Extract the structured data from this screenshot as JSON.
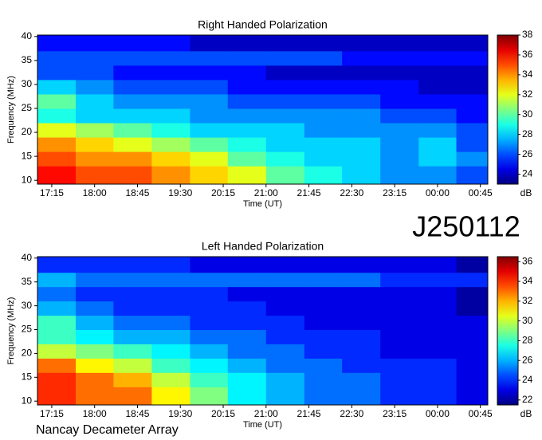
{
  "label": "J250112",
  "footer": "Nancay Decameter Array",
  "chart_data": [
    {
      "type": "heatmap",
      "title": "Right Handed Polarization",
      "xlabel": "Time (UT)",
      "ylabel": "Frequency (MHz)",
      "colorbar_label": "dB",
      "colormap": "jet",
      "xlim": [
        17,
        24.88
      ],
      "ylim": [
        9.2,
        40.3
      ],
      "zlim": [
        23,
        38
      ],
      "xticks": [
        {
          "value": 17.25,
          "label": "17:15"
        },
        {
          "value": 18,
          "label": "18:00"
        },
        {
          "value": 18.75,
          "label": "18:45"
        },
        {
          "value": 19.5,
          "label": "19:30"
        },
        {
          "value": 20.25,
          "label": "20:15"
        },
        {
          "value": 21,
          "label": "21:00"
        },
        {
          "value": 21.75,
          "label": "21:45"
        },
        {
          "value": 22.5,
          "label": "22:30"
        },
        {
          "value": 23.25,
          "label": "23:15"
        },
        {
          "value": 24,
          "label": "00:00"
        },
        {
          "value": 24.75,
          "label": "00:45"
        }
      ],
      "yticks": [
        10,
        15,
        20,
        25,
        30,
        35,
        40
      ],
      "zticks": [
        24,
        26,
        28,
        30,
        32,
        34,
        36,
        38
      ],
      "xbins": [
        17,
        17.67,
        18.33,
        19,
        19.67,
        20.33,
        21,
        21.67,
        22.33,
        23,
        23.67,
        24.33,
        25
      ],
      "ybins": [
        9,
        13,
        16,
        19,
        22,
        25,
        28,
        31,
        34,
        37,
        41
      ],
      "z": [
        [
          36,
          35,
          35,
          34,
          33,
          32,
          30,
          29,
          28,
          27,
          27,
          26
        ],
        [
          35,
          34,
          34,
          33,
          32,
          30,
          29,
          28,
          28,
          27,
          28,
          27
        ],
        [
          34,
          33,
          32,
          31,
          30,
          29,
          28,
          28,
          28,
          27,
          28,
          26
        ],
        [
          32,
          31,
          30,
          29,
          28,
          28,
          28,
          27,
          27,
          27,
          27,
          26
        ],
        [
          29,
          28,
          28,
          28,
          27,
          27,
          27,
          27,
          27,
          26,
          26,
          25
        ],
        [
          30,
          28,
          27,
          27,
          27,
          26,
          26,
          26,
          26,
          25,
          25,
          25
        ],
        [
          28,
          27,
          26,
          26,
          26,
          25,
          25,
          25,
          25,
          25,
          24,
          24
        ],
        [
          26,
          26,
          25,
          25,
          25,
          25,
          24,
          24,
          24,
          24,
          24,
          24
        ],
        [
          26,
          26,
          26,
          26,
          26,
          26,
          26,
          26,
          25,
          25,
          25,
          25
        ],
        [
          25,
          25,
          25,
          25,
          24,
          24,
          24,
          24,
          24,
          24,
          24,
          24
        ]
      ]
    },
    {
      "type": "heatmap",
      "title": "Left Handed Polarization",
      "xlabel": "Time (UT)",
      "ylabel": "Frequency (MHz)",
      "colorbar_label": "dB",
      "colormap": "jet",
      "xlim": [
        17,
        24.88
      ],
      "ylim": [
        9.2,
        40.3
      ],
      "zlim": [
        21.5,
        36.5
      ],
      "xticks": [
        {
          "value": 17.25,
          "label": "17:15"
        },
        {
          "value": 18,
          "label": "18:00"
        },
        {
          "value": 18.75,
          "label": "18:45"
        },
        {
          "value": 19.5,
          "label": "19:30"
        },
        {
          "value": 20.25,
          "label": "20:15"
        },
        {
          "value": 21,
          "label": "21:00"
        },
        {
          "value": 21.75,
          "label": "21:45"
        },
        {
          "value": 22.5,
          "label": "22:30"
        },
        {
          "value": 23.25,
          "label": "23:15"
        },
        {
          "value": 24,
          "label": "00:00"
        },
        {
          "value": 24.75,
          "label": "00:45"
        }
      ],
      "yticks": [
        10,
        15,
        20,
        25,
        30,
        35,
        40
      ],
      "zticks": [
        22,
        24,
        26,
        28,
        30,
        32,
        34,
        36
      ],
      "xbins": [
        17,
        17.67,
        18.33,
        19,
        19.67,
        20.33,
        21,
        21.67,
        22.33,
        23,
        23.67,
        24.33,
        25
      ],
      "ybins": [
        9,
        13,
        16,
        19,
        22,
        25,
        28,
        31,
        34,
        37,
        41
      ],
      "z": [
        [
          34,
          33,
          33,
          31,
          29,
          27,
          26,
          25,
          25,
          24,
          24,
          23
        ],
        [
          34,
          33,
          32,
          30,
          28,
          27,
          26,
          25,
          25,
          24,
          24,
          23
        ],
        [
          33,
          31,
          30,
          28,
          27,
          26,
          25,
          25,
          24,
          24,
          24,
          23
        ],
        [
          30,
          29,
          28,
          27,
          26,
          25,
          25,
          24,
          24,
          23,
          23,
          23
        ],
        [
          28,
          27,
          26,
          26,
          25,
          25,
          24,
          24,
          24,
          23,
          23,
          23
        ],
        [
          28,
          26,
          25,
          25,
          24,
          24,
          24,
          23,
          23,
          23,
          23,
          23
        ],
        [
          26,
          25,
          24,
          24,
          24,
          24,
          23,
          23,
          23,
          23,
          23,
          22
        ],
        [
          25,
          24,
          24,
          24,
          24,
          23,
          23,
          23,
          23,
          23,
          23,
          22
        ],
        [
          26,
          25,
          25,
          25,
          25,
          25,
          25,
          25,
          25,
          24,
          24,
          24
        ],
        [
          24,
          24,
          24,
          24,
          23,
          23,
          23,
          23,
          23,
          23,
          23,
          22
        ]
      ]
    }
  ]
}
